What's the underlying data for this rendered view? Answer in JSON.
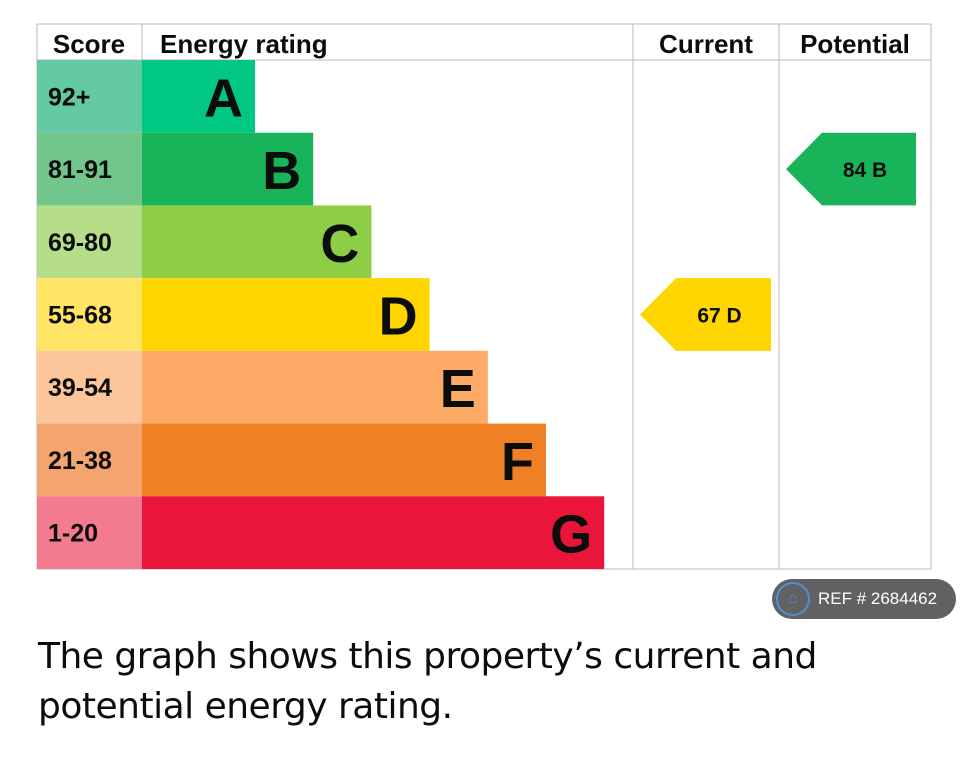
{
  "chart_data": {
    "type": "bar",
    "title": "Energy rating",
    "headers": {
      "score": "Score",
      "rating": "Energy rating",
      "current": "Current",
      "potential": "Potential"
    },
    "bands": [
      {
        "letter": "A",
        "score": "92+",
        "color": "#00c781",
        "light": "#63c9a2"
      },
      {
        "letter": "B",
        "score": "81-91",
        "color": "#19b459",
        "light": "#71c68b"
      },
      {
        "letter": "C",
        "score": "69-80",
        "color": "#8dce46",
        "light": "#b6de88"
      },
      {
        "letter": "D",
        "score": "55-68",
        "color": "#ffd500",
        "light": "#ffe466"
      },
      {
        "letter": "E",
        "score": "39-54",
        "color": "#fcaa65",
        "light": "#fdc69a"
      },
      {
        "letter": "F",
        "score": "21-38",
        "color": "#ef8023",
        "light": "#f4a56f"
      },
      {
        "letter": "G",
        "score": "1-20",
        "color": "#e9153b",
        "light": "#f27b90"
      }
    ],
    "current": {
      "value": 67,
      "band": "D",
      "label": "67  D"
    },
    "potential": {
      "value": 84,
      "band": "B",
      "label": "84  B"
    }
  },
  "ref": {
    "label": "REF # 2684462",
    "icon": "home-icon"
  },
  "caption": "The graph shows this property’s current and potential energy rating."
}
